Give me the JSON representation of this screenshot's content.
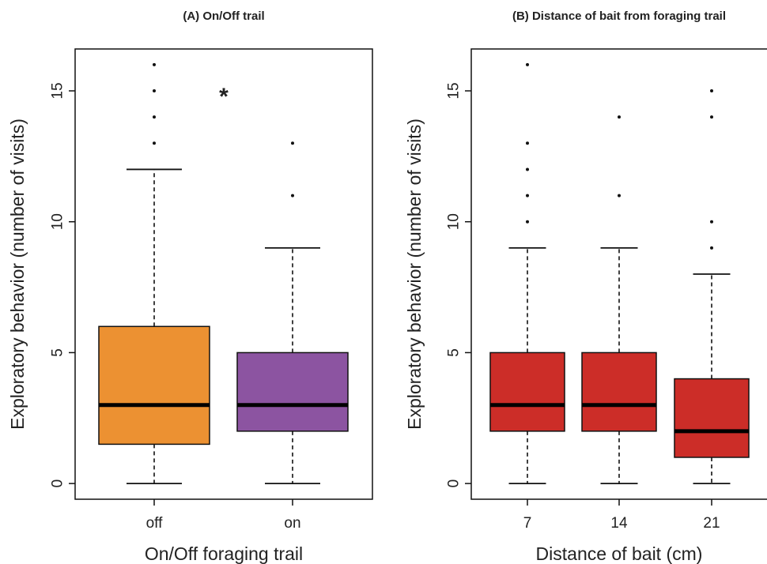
{
  "chart_data": [
    {
      "type": "box",
      "title": "(A) On/Off trail",
      "xlabel": "On/Off foraging trail",
      "ylabel": "Exploratory behavior (number of visits)",
      "ylim": [
        -0.6,
        16.6
      ],
      "yticks": [
        0,
        5,
        10,
        15
      ],
      "categories": [
        "off",
        "on"
      ],
      "annotation": "*",
      "boxes": [
        {
          "category": "off",
          "color": "#EC9132",
          "whisker_low": 0,
          "q1": 1.5,
          "median": 3,
          "q3": 6,
          "whisker_high": 12,
          "outliers": [
            13,
            14,
            15,
            16
          ]
        },
        {
          "category": "on",
          "color": "#8C54A1",
          "whisker_low": 0,
          "q1": 2,
          "median": 3,
          "q3": 5,
          "whisker_high": 9,
          "outliers": [
            11,
            13
          ]
        }
      ]
    },
    {
      "type": "box",
      "title": "(B) Distance of bait from foraging trail",
      "xlabel": "Distance of bait (cm)",
      "ylabel": "Exploratory behavior (number of visits)",
      "ylim": [
        -0.6,
        16.6
      ],
      "yticks": [
        0,
        5,
        10,
        15
      ],
      "categories": [
        "7",
        "14",
        "21"
      ],
      "boxes": [
        {
          "category": "7",
          "color": "#CC2D28",
          "whisker_low": 0,
          "q1": 2,
          "median": 3,
          "q3": 5,
          "whisker_high": 9,
          "outliers": [
            10,
            11,
            12,
            13,
            16
          ]
        },
        {
          "category": "14",
          "color": "#CC2D28",
          "whisker_low": 0,
          "q1": 2,
          "median": 3,
          "q3": 5,
          "whisker_high": 9,
          "outliers": [
            11,
            14
          ]
        },
        {
          "category": "21",
          "color": "#CC2D28",
          "whisker_low": 0,
          "q1": 1,
          "median": 2,
          "q3": 4,
          "whisker_high": 8,
          "outliers": [
            9,
            10,
            14,
            15
          ]
        }
      ]
    }
  ]
}
